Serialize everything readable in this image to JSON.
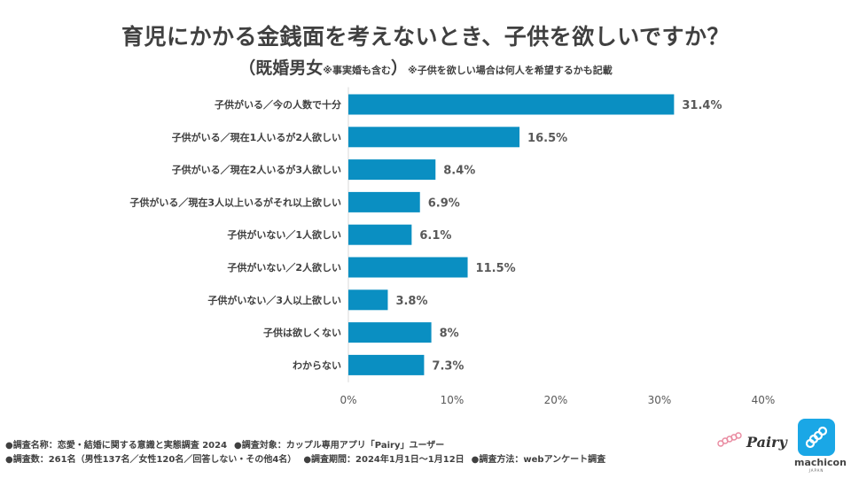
{
  "header": {
    "title": "育児にかかる金銭面を考えないとき、子供を欲しいですか？",
    "subtitle_main": "既婚男女",
    "subtitle_note": "※事実婚も含む",
    "subtitle_extra": "※子供を欲しい場合は何人を希望するかも記載"
  },
  "chart_data": {
    "type": "bar",
    "orientation": "horizontal",
    "title": "育児にかかる金銭面を考えないとき、子供を欲しいですか？",
    "categories": [
      "子供がいる／今の人数で十分",
      "子供がいる／現在1人いるが2人欲しい",
      "子供がいる／現在2人いるが3人欲しい",
      "子供がいる／現在3人以上いるがそれ以上欲しい",
      "子供がいない／1人欲しい",
      "子供がいない／2人欲しい",
      "子供がいない／3人以上欲しい",
      "子供は欲しくない",
      "わからない"
    ],
    "values": [
      31.4,
      16.5,
      8.4,
      6.9,
      6.1,
      11.5,
      3.8,
      8,
      7.3
    ],
    "value_labels": [
      "31.4%",
      "16.5%",
      "8.4%",
      "6.9%",
      "6.1%",
      "11.5%",
      "3.8%",
      "8%",
      "7.3%"
    ],
    "xlim": [
      0,
      40
    ],
    "xticks": [
      0,
      10,
      20,
      30,
      40
    ],
    "xtick_labels": [
      "0%",
      "10%",
      "20%",
      "30%",
      "40%"
    ],
    "bar_color": "#0a8fc2",
    "grid": false,
    "legend": "none"
  },
  "footer": {
    "line1": [
      "●調査名称：恋愛・結婚に関する意識と実態調査 2024",
      "●調査対象：カップル専用アプリ「Pairy」ユーザー"
    ],
    "line2": [
      "●調査数：261名（男性137名／女性120名／回答しない・その他4名）",
      "●調査期間：2024年1月1日～1月12日",
      "●調査方法：webアンケート調査"
    ]
  },
  "logos": {
    "pairy": "Pairy",
    "machicon": "machicon",
    "machicon_sub": "JAPAN"
  }
}
